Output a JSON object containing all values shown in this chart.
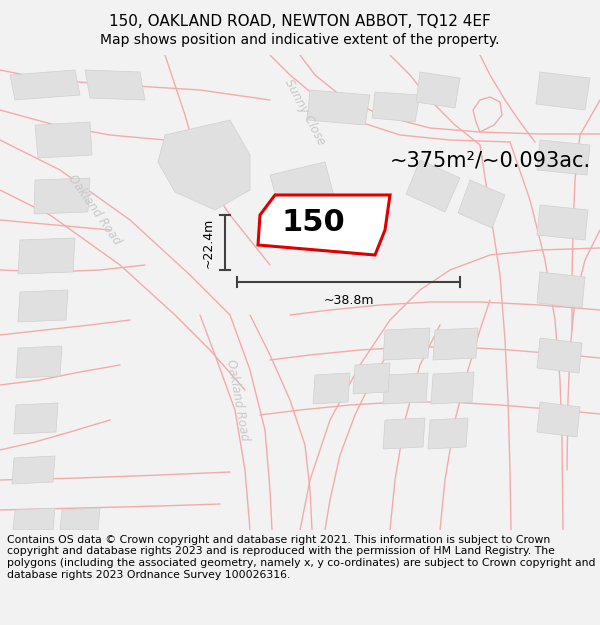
{
  "title_line1": "150, OAKLAND ROAD, NEWTON ABBOT, TQ12 4EF",
  "title_line2": "Map shows position and indicative extent of the property.",
  "footer_text": "Contains OS data © Crown copyright and database right 2021. This information is subject to Crown copyright and database rights 2023 and is reproduced with the permission of HM Land Registry. The polygons (including the associated geometry, namely x, y co-ordinates) are subject to Crown copyright and database rights 2023 Ordnance Survey 100026316.",
  "area_label": "~375m²/~0.093ac.",
  "number_label": "150",
  "dim_vertical": "~22.4m",
  "dim_horizontal": "~38.8m",
  "road_label_upper_left": "Oakland Road",
  "road_label_lower": "Oakland Road",
  "road_label_sunny": "Sunny Close",
  "bg_color": "#f2f2f2",
  "map_bg": "#ffffff",
  "road_color": "#f5aaaa",
  "building_color": "#e0e0e0",
  "building_edge": "#d0d0d0",
  "property_color": "#dd0000",
  "dim_color": "#404040",
  "road_label_color": "#c8c8c8",
  "title_fontsize": 11,
  "subtitle_fontsize": 10,
  "footer_fontsize": 7.8,
  "label_fontsize": 8.5,
  "area_fontsize": 15,
  "number_fontsize": 22,
  "dim_fontsize": 9
}
